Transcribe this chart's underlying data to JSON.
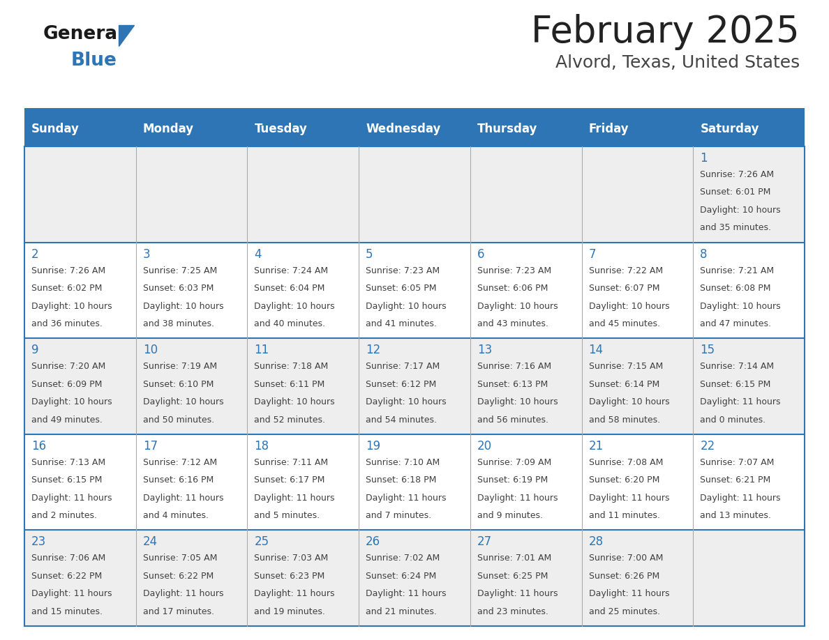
{
  "title": "February 2025",
  "subtitle": "Alvord, Texas, United States",
  "header_color": "#2E75B6",
  "header_text_color": "#FFFFFF",
  "cell_bg_even": "#EEEEEE",
  "cell_bg_odd": "#FFFFFF",
  "day_number_color": "#2E75B6",
  "text_color": "#404040",
  "border_color": "#2E75B6",
  "sep_line_color": "#AAAAAA",
  "weekdays": [
    "Sunday",
    "Monday",
    "Tuesday",
    "Wednesday",
    "Thursday",
    "Friday",
    "Saturday"
  ],
  "logo_general_color": "#1a1a1a",
  "logo_blue_color": "#2E75B6",
  "logo_triangle_color": "#2E75B6",
  "calendar_data": [
    [
      null,
      null,
      null,
      null,
      null,
      null,
      {
        "day": 1,
        "sunrise": "7:26 AM",
        "sunset": "6:01 PM",
        "daylight": "10 hours",
        "daylight2": "and 35 minutes."
      }
    ],
    [
      {
        "day": 2,
        "sunrise": "7:26 AM",
        "sunset": "6:02 PM",
        "daylight": "10 hours",
        "daylight2": "and 36 minutes."
      },
      {
        "day": 3,
        "sunrise": "7:25 AM",
        "sunset": "6:03 PM",
        "daylight": "10 hours",
        "daylight2": "and 38 minutes."
      },
      {
        "day": 4,
        "sunrise": "7:24 AM",
        "sunset": "6:04 PM",
        "daylight": "10 hours",
        "daylight2": "and 40 minutes."
      },
      {
        "day": 5,
        "sunrise": "7:23 AM",
        "sunset": "6:05 PM",
        "daylight": "10 hours",
        "daylight2": "and 41 minutes."
      },
      {
        "day": 6,
        "sunrise": "7:23 AM",
        "sunset": "6:06 PM",
        "daylight": "10 hours",
        "daylight2": "and 43 minutes."
      },
      {
        "day": 7,
        "sunrise": "7:22 AM",
        "sunset": "6:07 PM",
        "daylight": "10 hours",
        "daylight2": "and 45 minutes."
      },
      {
        "day": 8,
        "sunrise": "7:21 AM",
        "sunset": "6:08 PM",
        "daylight": "10 hours",
        "daylight2": "and 47 minutes."
      }
    ],
    [
      {
        "day": 9,
        "sunrise": "7:20 AM",
        "sunset": "6:09 PM",
        "daylight": "10 hours",
        "daylight2": "and 49 minutes."
      },
      {
        "day": 10,
        "sunrise": "7:19 AM",
        "sunset": "6:10 PM",
        "daylight": "10 hours",
        "daylight2": "and 50 minutes."
      },
      {
        "day": 11,
        "sunrise": "7:18 AM",
        "sunset": "6:11 PM",
        "daylight": "10 hours",
        "daylight2": "and 52 minutes."
      },
      {
        "day": 12,
        "sunrise": "7:17 AM",
        "sunset": "6:12 PM",
        "daylight": "10 hours",
        "daylight2": "and 54 minutes."
      },
      {
        "day": 13,
        "sunrise": "7:16 AM",
        "sunset": "6:13 PM",
        "daylight": "10 hours",
        "daylight2": "and 56 minutes."
      },
      {
        "day": 14,
        "sunrise": "7:15 AM",
        "sunset": "6:14 PM",
        "daylight": "10 hours",
        "daylight2": "and 58 minutes."
      },
      {
        "day": 15,
        "sunrise": "7:14 AM",
        "sunset": "6:15 PM",
        "daylight": "11 hours",
        "daylight2": "and 0 minutes."
      }
    ],
    [
      {
        "day": 16,
        "sunrise": "7:13 AM",
        "sunset": "6:15 PM",
        "daylight": "11 hours",
        "daylight2": "and 2 minutes."
      },
      {
        "day": 17,
        "sunrise": "7:12 AM",
        "sunset": "6:16 PM",
        "daylight": "11 hours",
        "daylight2": "and 4 minutes."
      },
      {
        "day": 18,
        "sunrise": "7:11 AM",
        "sunset": "6:17 PM",
        "daylight": "11 hours",
        "daylight2": "and 5 minutes."
      },
      {
        "day": 19,
        "sunrise": "7:10 AM",
        "sunset": "6:18 PM",
        "daylight": "11 hours",
        "daylight2": "and 7 minutes."
      },
      {
        "day": 20,
        "sunrise": "7:09 AM",
        "sunset": "6:19 PM",
        "daylight": "11 hours",
        "daylight2": "and 9 minutes."
      },
      {
        "day": 21,
        "sunrise": "7:08 AM",
        "sunset": "6:20 PM",
        "daylight": "11 hours",
        "daylight2": "and 11 minutes."
      },
      {
        "day": 22,
        "sunrise": "7:07 AM",
        "sunset": "6:21 PM",
        "daylight": "11 hours",
        "daylight2": "and 13 minutes."
      }
    ],
    [
      {
        "day": 23,
        "sunrise": "7:06 AM",
        "sunset": "6:22 PM",
        "daylight": "11 hours",
        "daylight2": "and 15 minutes."
      },
      {
        "day": 24,
        "sunrise": "7:05 AM",
        "sunset": "6:22 PM",
        "daylight": "11 hours",
        "daylight2": "and 17 minutes."
      },
      {
        "day": 25,
        "sunrise": "7:03 AM",
        "sunset": "6:23 PM",
        "daylight": "11 hours",
        "daylight2": "and 19 minutes."
      },
      {
        "day": 26,
        "sunrise": "7:02 AM",
        "sunset": "6:24 PM",
        "daylight": "11 hours",
        "daylight2": "and 21 minutes."
      },
      {
        "day": 27,
        "sunrise": "7:01 AM",
        "sunset": "6:25 PM",
        "daylight": "11 hours",
        "daylight2": "and 23 minutes."
      },
      {
        "day": 28,
        "sunrise": "7:00 AM",
        "sunset": "6:26 PM",
        "daylight": "11 hours",
        "daylight2": "and 25 minutes."
      },
      null
    ]
  ]
}
